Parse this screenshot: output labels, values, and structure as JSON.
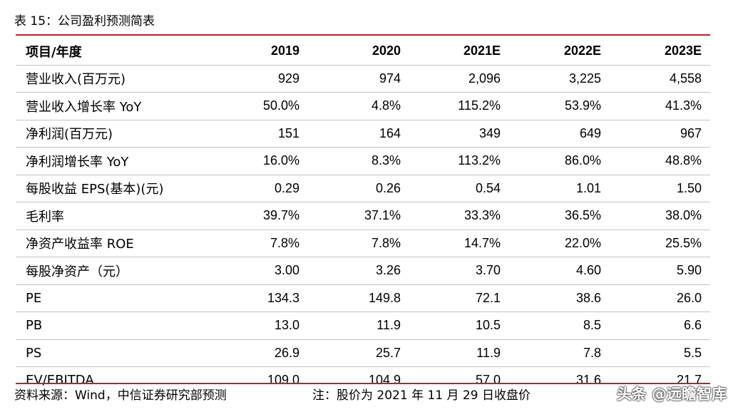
{
  "title": "表 15：公司盈利预测简表",
  "table": {
    "headers": [
      "项目/年度",
      "2019",
      "2020",
      "2021E",
      "2022E",
      "2023E"
    ],
    "rows": [
      [
        "营业收入(百万元)",
        "929",
        "974",
        "2,096",
        "3,225",
        "4,558"
      ],
      [
        "营业收入增长率 YoY",
        "50.0%",
        "4.8%",
        "115.2%",
        "53.9%",
        "41.3%"
      ],
      [
        "净利润(百万元)",
        "151",
        "164",
        "349",
        "649",
        "967"
      ],
      [
        "净利润增长率 YoY",
        "16.0%",
        "8.3%",
        "113.2%",
        "86.0%",
        "48.8%"
      ],
      [
        "每股收益 EPS(基本)(元)",
        "0.29",
        "0.26",
        "0.54",
        "1.01",
        "1.50"
      ],
      [
        "毛利率",
        "39.7%",
        "37.1%",
        "33.3%",
        "36.5%",
        "38.0%"
      ],
      [
        "净资产收益率 ROE",
        "7.8%",
        "7.8%",
        "14.7%",
        "22.0%",
        "25.5%"
      ],
      [
        "每股净资产（元）",
        "3.00",
        "3.26",
        "3.70",
        "4.60",
        "5.90"
      ],
      [
        "PE",
        "134.3",
        "149.8",
        "72.1",
        "38.6",
        "26.0"
      ],
      [
        "PB",
        "13.0",
        "11.9",
        "10.5",
        "8.5",
        "6.6"
      ],
      [
        "PS",
        "26.9",
        "25.7",
        "11.9",
        "7.8",
        "5.5"
      ],
      [
        "EV/EBITDA",
        "109.0",
        "104.9",
        "57.0",
        "31.6",
        "21.7"
      ]
    ]
  },
  "footer": {
    "source": "资料来源：Wind，中信证券研究部预测",
    "note": "注：股价为 2021 年 11 月 29 日收盘价"
  },
  "watermark": "头条 @远瞻智库",
  "colors": {
    "rule": "#b5242c"
  }
}
